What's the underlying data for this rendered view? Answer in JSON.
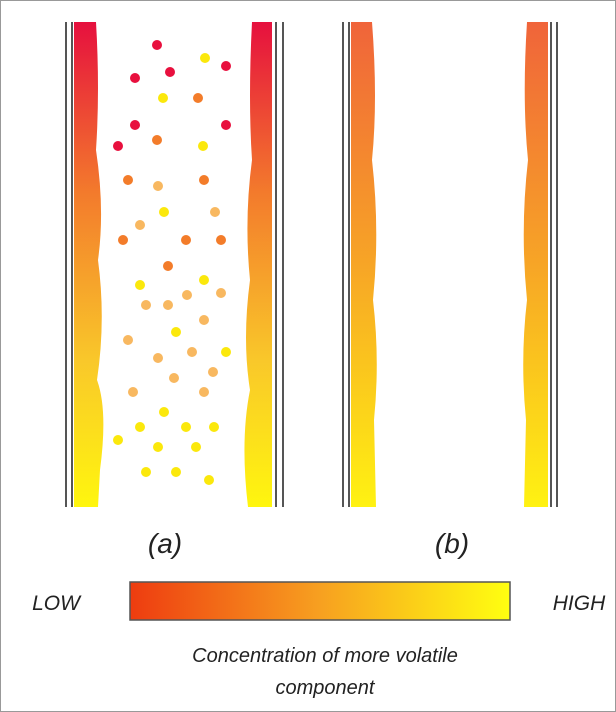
{
  "labels": {
    "a": "(a)",
    "b": "(b)"
  },
  "scale": {
    "low": "LOW",
    "high": "HIGH"
  },
  "caption": [
    "Concentration of more volatile",
    "component"
  ]
}
